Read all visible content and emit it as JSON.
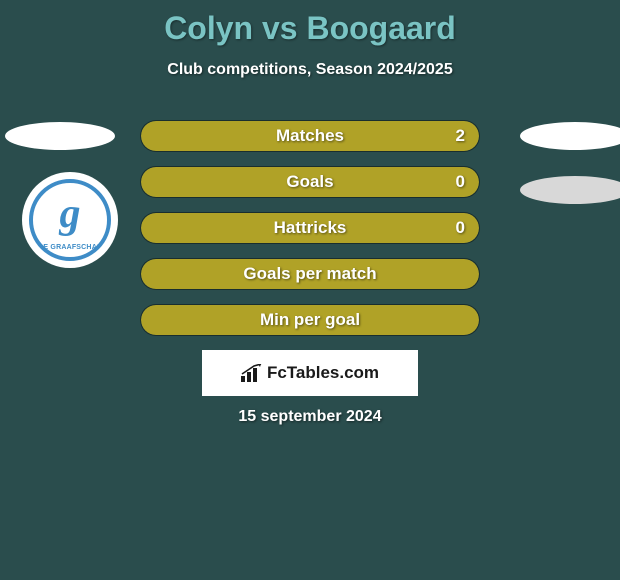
{
  "background_color": "#2a4d4d",
  "title": {
    "text": "Colyn vs Boogaard",
    "color": "#7ac4c4",
    "fontsize": 32,
    "fontweight": 800
  },
  "subtitle": {
    "text": "Club competitions, Season 2024/2025",
    "color": "#ffffff",
    "fontsize": 16
  },
  "badge": {
    "letter": "g",
    "team_name": "DE GRAAFSCHAP",
    "border_color": "#3e8cc7",
    "text_color": "#3e8cc7"
  },
  "bars": {
    "fill_color": "#b0a227",
    "border_color": "rgba(0,0,0,0.4)",
    "label_color": "#ffffff",
    "label_fontsize": 17,
    "items": [
      {
        "label": "Matches",
        "value": "2",
        "fill_pct": 100
      },
      {
        "label": "Goals",
        "value": "0",
        "fill_pct": 100
      },
      {
        "label": "Hattricks",
        "value": "0",
        "fill_pct": 100
      },
      {
        "label": "Goals per match",
        "value": "",
        "fill_pct": 100
      },
      {
        "label": "Min per goal",
        "value": "",
        "fill_pct": 100
      }
    ]
  },
  "logo": {
    "text": "FcTables.com",
    "box_border": "#ffffff",
    "box_bg": "#ffffff",
    "text_color": "#1a1a1a"
  },
  "date": {
    "text": "15 september 2024",
    "color": "#ffffff",
    "fontsize": 16
  },
  "ovals": {
    "left_color": "#ffffff",
    "right_top_color": "#ffffff",
    "right_bottom_color": "#d8d8d8"
  }
}
